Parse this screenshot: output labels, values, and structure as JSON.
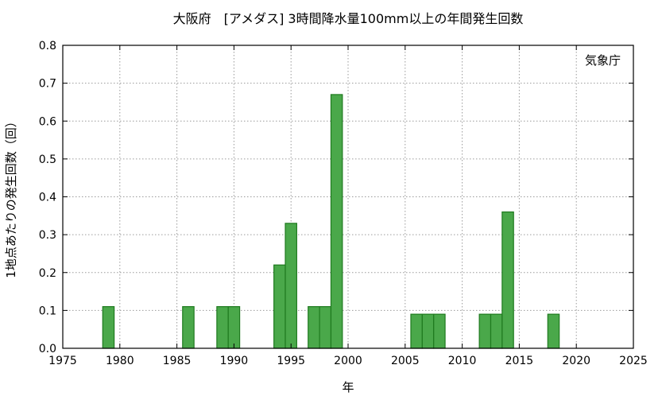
{
  "chart_data": {
    "type": "bar",
    "title": "大阪府　[アメダス] 3時間降水量100mm以上の年間発生回数",
    "xlabel": "年",
    "ylabel": "1地点あたりの発生回数（回）",
    "annotation": "気象庁",
    "xlim": [
      1975,
      2025
    ],
    "ylim": [
      0,
      0.8
    ],
    "xticks": [
      1975,
      1980,
      1985,
      1990,
      1995,
      2000,
      2005,
      2010,
      2015,
      2020,
      2025
    ],
    "yticks": [
      0.0,
      0.1,
      0.2,
      0.3,
      0.4,
      0.5,
      0.6,
      0.7,
      0.8
    ],
    "ytick_labels": [
      "0.0",
      "0.1",
      "0.2",
      "0.3",
      "0.4",
      "0.5",
      "0.6",
      "0.7",
      "0.8"
    ],
    "grid": true,
    "bar_color": "#4aa84a",
    "bar_edge_color": "#1f7a1f",
    "years": [
      1979,
      1986,
      1989,
      1990,
      1994,
      1995,
      1997,
      1998,
      1999,
      2006,
      2007,
      2008,
      2012,
      2013,
      2014,
      2018
    ],
    "values": [
      0.11,
      0.11,
      0.11,
      0.11,
      0.22,
      0.33,
      0.11,
      0.11,
      0.67,
      0.09,
      0.09,
      0.09,
      0.09,
      0.09,
      0.36,
      0.09
    ]
  }
}
